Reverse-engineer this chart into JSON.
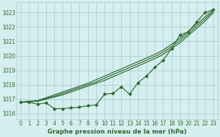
{
  "title": "Graphe pression niveau de la mer (hPa)",
  "bg_color": "#d6eef0",
  "grid_color": "#a8cece",
  "line_color": "#2d6b2d",
  "marker": "D",
  "markersize": 2.5,
  "linewidth": 0.9,
  "xlim": [
    -0.5,
    23.5
  ],
  "ylim": [
    1015.6,
    1023.7
  ],
  "yticks": [
    1016,
    1017,
    1018,
    1019,
    1020,
    1021,
    1022,
    1023
  ],
  "xticks": [
    0,
    1,
    2,
    3,
    4,
    5,
    6,
    7,
    8,
    9,
    10,
    11,
    12,
    13,
    14,
    15,
    16,
    17,
    18,
    19,
    20,
    21,
    22,
    23
  ],
  "xlabel_fontsize": 6.5,
  "tick_fontsize": 5.5,
  "smooth_series": [
    [
      1016.8,
      1016.85,
      1016.85,
      1017.0,
      1017.15,
      1017.3,
      1017.5,
      1017.7,
      1017.9,
      1018.1,
      1018.3,
      1018.55,
      1018.8,
      1019.05,
      1019.3,
      1019.55,
      1019.8,
      1020.1,
      1020.5,
      1020.9,
      1021.4,
      1021.9,
      1022.4,
      1023.0
    ],
    [
      1016.8,
      1016.85,
      1016.9,
      1017.05,
      1017.2,
      1017.4,
      1017.6,
      1017.8,
      1018.0,
      1018.2,
      1018.45,
      1018.7,
      1018.95,
      1019.2,
      1019.45,
      1019.7,
      1019.95,
      1020.25,
      1020.65,
      1021.05,
      1021.55,
      1022.05,
      1022.55,
      1023.1
    ],
    [
      1016.8,
      1016.85,
      1016.9,
      1017.1,
      1017.3,
      1017.5,
      1017.7,
      1017.9,
      1018.1,
      1018.35,
      1018.6,
      1018.85,
      1019.1,
      1019.35,
      1019.6,
      1019.85,
      1020.1,
      1020.4,
      1020.8,
      1021.2,
      1021.7,
      1022.2,
      1022.7,
      1023.2
    ]
  ],
  "jagged_series": [
    1016.8,
    1016.8,
    1016.65,
    1016.75,
    1016.35,
    1016.35,
    1016.4,
    1016.45,
    1016.55,
    1016.6,
    1017.35,
    1017.4,
    1017.85,
    1017.35,
    1018.15,
    1018.6,
    1019.2,
    1019.7,
    1020.5,
    1021.45,
    1021.65,
    1022.35,
    1023.0,
    1023.2
  ]
}
